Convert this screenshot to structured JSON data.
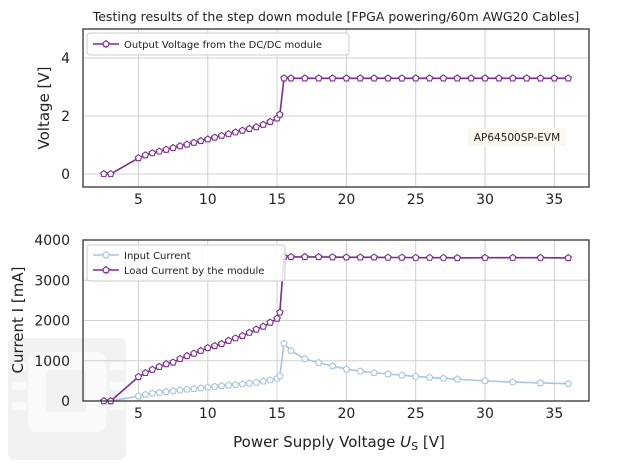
{
  "chart_data": [
    {
      "type": "line",
      "title": "Testing results of the step down module [FPGA powering/60m AWG20 Cables]",
      "xlabel": "",
      "ylabel": "Voltage [V]",
      "xlim": [
        1.0,
        37.5
      ],
      "ylim": [
        -0.45,
        5.0
      ],
      "xticks": [
        5,
        10,
        15,
        20,
        25,
        30,
        35
      ],
      "yticks": [
        0,
        2,
        4
      ],
      "grid": true,
      "legend_position": "top-left",
      "annotation": "AP64500SP-EVM",
      "series": [
        {
          "name": "Output Voltage from the DC/DC module",
          "color": "#7b2d8e",
          "x": [
            2.5,
            3.0,
            5.0,
            5.5,
            6.0,
            6.5,
            7.0,
            7.5,
            8.0,
            8.5,
            9.0,
            9.5,
            10.0,
            10.5,
            11.0,
            11.5,
            12.0,
            12.5,
            13.0,
            13.5,
            14.0,
            14.5,
            15.0,
            15.2,
            15.5,
            16.0,
            17.0,
            18.0,
            19.0,
            20.0,
            21.0,
            22.0,
            23.0,
            24.0,
            25.0,
            26.0,
            27.0,
            28.0,
            29.0,
            30.0,
            31.0,
            32.0,
            33.0,
            34.0,
            35.0,
            36.0
          ],
          "y": [
            0.0,
            0.0,
            0.55,
            0.65,
            0.72,
            0.78,
            0.84,
            0.9,
            0.96,
            1.02,
            1.08,
            1.14,
            1.2,
            1.26,
            1.32,
            1.38,
            1.44,
            1.5,
            1.56,
            1.62,
            1.7,
            1.8,
            1.92,
            2.05,
            3.3,
            3.3,
            3.3,
            3.3,
            3.3,
            3.3,
            3.3,
            3.3,
            3.3,
            3.3,
            3.3,
            3.3,
            3.3,
            3.3,
            3.3,
            3.3,
            3.3,
            3.3,
            3.3,
            3.3,
            3.3,
            3.3
          ]
        }
      ]
    },
    {
      "type": "line",
      "title": "",
      "xlabel": "Power Supply Voltage U_S [V]",
      "xlabel_main": "Power Supply Voltage ",
      "xlabel_var": "U",
      "xlabel_sub": "S",
      "xlabel_unit": " [V]",
      "ylabel": "Current I [mA]",
      "xlim": [
        1.0,
        37.5
      ],
      "ylim": [
        0,
        4000
      ],
      "xticks": [
        5,
        10,
        15,
        20,
        25,
        30,
        35
      ],
      "yticks": [
        0,
        1000,
        2000,
        3000,
        4000
      ],
      "grid": true,
      "legend_position": "top-left",
      "series": [
        {
          "name": "Input Current",
          "color": "#a9c6e0",
          "x": [
            2.5,
            3.0,
            5.0,
            5.5,
            6.0,
            6.5,
            7.0,
            7.5,
            8.0,
            8.5,
            9.0,
            9.5,
            10.0,
            10.5,
            11.0,
            11.5,
            12.0,
            12.5,
            13.0,
            13.5,
            14.0,
            14.5,
            15.0,
            15.2,
            15.5,
            16.0,
            17.0,
            18.0,
            19.0,
            20.0,
            21.0,
            22.0,
            23.0,
            24.0,
            25.0,
            26.0,
            27.0,
            28.0,
            30.0,
            32.0,
            34.0,
            36.0
          ],
          "y": [
            0,
            0,
            120,
            160,
            190,
            210,
            230,
            250,
            270,
            290,
            305,
            320,
            340,
            360,
            375,
            390,
            405,
            420,
            440,
            460,
            490,
            520,
            560,
            620,
            1430,
            1250,
            1050,
            950,
            870,
            790,
            740,
            700,
            670,
            640,
            610,
            585,
            560,
            540,
            500,
            470,
            450,
            430
          ]
        },
        {
          "name": "Load Current by the module",
          "color": "#7b2d8e",
          "x": [
            2.5,
            3.0,
            5.0,
            5.5,
            6.0,
            6.5,
            7.0,
            7.5,
            8.0,
            8.5,
            9.0,
            9.5,
            10.0,
            10.5,
            11.0,
            11.5,
            12.0,
            12.5,
            13.0,
            13.5,
            14.0,
            14.5,
            15.0,
            15.2,
            15.5,
            16.0,
            17.0,
            18.0,
            19.0,
            20.0,
            21.0,
            22.0,
            23.0,
            24.0,
            25.0,
            26.0,
            27.0,
            28.0,
            30.0,
            32.0,
            34.0,
            36.0
          ],
          "y": [
            0,
            0,
            600,
            700,
            780,
            850,
            920,
            960,
            1050,
            1120,
            1180,
            1250,
            1320,
            1370,
            1420,
            1500,
            1560,
            1620,
            1700,
            1780,
            1850,
            1950,
            2050,
            2200,
            3580,
            3580,
            3580,
            3580,
            3575,
            3570,
            3570,
            3570,
            3565,
            3565,
            3560,
            3560,
            3560,
            3555,
            3560,
            3560,
            3560,
            3555
          ]
        }
      ]
    }
  ]
}
